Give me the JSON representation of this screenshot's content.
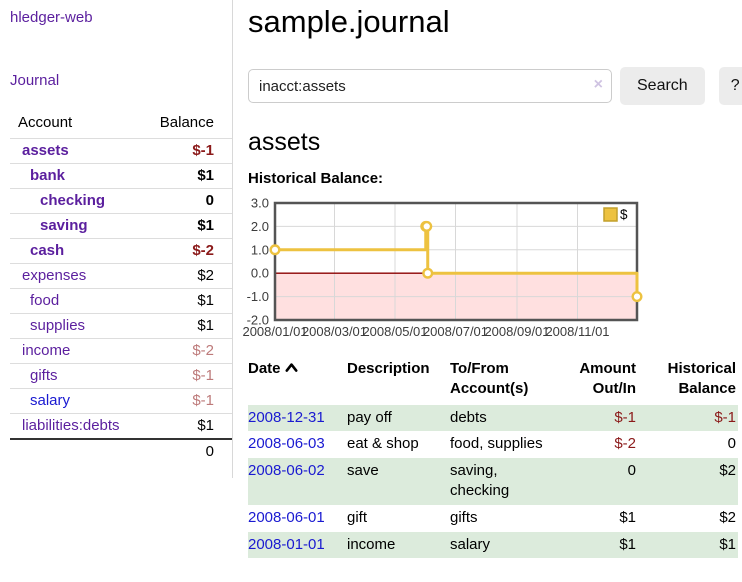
{
  "brand": "hledger-web",
  "nav": {
    "journal": "Journal"
  },
  "sidebar": {
    "headers": {
      "account": "Account",
      "balance": "Balance"
    },
    "rows": [
      {
        "label": "assets",
        "depth": 0,
        "bold": true,
        "label_color": "purple",
        "balance": "$-1",
        "balance_color": "neg"
      },
      {
        "label": "bank",
        "depth": 1,
        "bold": true,
        "label_color": "purple",
        "balance": "$1",
        "balance_color": "black"
      },
      {
        "label": "checking",
        "depth": 2,
        "bold": true,
        "label_color": "purple",
        "balance": "0",
        "balance_color": "black"
      },
      {
        "label": "saving",
        "depth": 2,
        "bold": true,
        "label_color": "purple",
        "balance": "$1",
        "balance_color": "black"
      },
      {
        "label": "cash",
        "depth": 1,
        "bold": true,
        "label_color": "purple",
        "balance": "$-2",
        "balance_color": "neg"
      },
      {
        "label": "expenses",
        "depth": 0,
        "bold": false,
        "label_color": "purple",
        "balance": "$2",
        "balance_color": "black"
      },
      {
        "label": "food",
        "depth": 1,
        "bold": false,
        "label_color": "purple",
        "balance": "$1",
        "balance_color": "black"
      },
      {
        "label": "supplies",
        "depth": 1,
        "bold": false,
        "label_color": "purple",
        "balance": "$1",
        "balance_color": "black"
      },
      {
        "label": "income",
        "depth": 0,
        "bold": false,
        "label_color": "purple",
        "balance": "$-2",
        "balance_color": "rose"
      },
      {
        "label": "gifts",
        "depth": 1,
        "bold": false,
        "label_color": "purple",
        "balance": "$-1",
        "balance_color": "rose"
      },
      {
        "label": "salary",
        "depth": 1,
        "bold": false,
        "label_color": "blue",
        "balance": "$-1",
        "balance_color": "rose"
      },
      {
        "label": "liabilities:debts",
        "depth": 0,
        "bold": false,
        "label_color": "purple",
        "balance": "$1",
        "balance_color": "black"
      }
    ],
    "total": "0"
  },
  "main": {
    "title": "sample.journal",
    "search": {
      "value": "inacct:assets",
      "clear_icon": "×",
      "search_button": "Search",
      "help_button": "?"
    },
    "account_heading": "assets",
    "chart_title": "Historical Balance:"
  },
  "chart_data": {
    "type": "line",
    "step": true,
    "title": "Historical Balance",
    "legend": "$",
    "legend_position": "top-right",
    "series": [
      {
        "name": "$",
        "color": "#EDC240",
        "points": [
          [
            "2008-01-01",
            1
          ],
          [
            "2008-06-01",
            2
          ],
          [
            "2008-06-02",
            2
          ],
          [
            "2008-06-03",
            0
          ],
          [
            "2008-12-31",
            -1
          ]
        ]
      }
    ],
    "x_range": [
      "2008-01-01",
      "2008-12-31"
    ],
    "x_ticks": [
      {
        "date": "2008-01-01",
        "label": "2008/01/01"
      },
      {
        "date": "2008-03-01",
        "label": "2008/03/01"
      },
      {
        "date": "2008-05-01",
        "label": "2008/05/01"
      },
      {
        "date": "2008-07-01",
        "label": "2008/07/01"
      },
      {
        "date": "2008-09-01",
        "label": "2008/09/01"
      },
      {
        "date": "2008-11-01",
        "label": "2008/11/01"
      }
    ],
    "y_ticks": [
      3.0,
      2.0,
      1.0,
      0.0,
      -1.0,
      -2.0
    ],
    "ylim": [
      -2,
      3
    ],
    "grid": true,
    "zero_line_color": "#8b0000",
    "negative_region_fill": "rgba(255,0,0,0.12)",
    "marker": "open-circle",
    "border_color": "#545454",
    "grid_color": "#d8d8d8"
  },
  "register": {
    "headers": {
      "date": "Date",
      "description": "Description",
      "accounts": "To/From Account(s)",
      "amount": "Amount Out/In",
      "balance": "Historical Balance"
    },
    "sort_icon": "chevron-up",
    "rows": [
      {
        "date": "2008-12-31",
        "description": "pay off",
        "accounts": "debts",
        "amount": "$-1",
        "amount_neg": true,
        "balance": "$-1",
        "balance_neg": true
      },
      {
        "date": "2008-06-03",
        "description": "eat & shop",
        "accounts": "food, supplies",
        "amount": "$-2",
        "amount_neg": true,
        "balance": "0",
        "balance_neg": false
      },
      {
        "date": "2008-06-02",
        "description": "save",
        "accounts": "saving, checking",
        "amount": "0",
        "amount_neg": false,
        "balance": "$2",
        "balance_neg": false
      },
      {
        "date": "2008-06-01",
        "description": "gift",
        "accounts": "gifts",
        "amount": "$1",
        "amount_neg": false,
        "balance": "$2",
        "balance_neg": false
      },
      {
        "date": "2008-01-01",
        "description": "income",
        "accounts": "salary",
        "amount": "$1",
        "amount_neg": false,
        "balance": "$1",
        "balance_neg": false
      }
    ]
  },
  "colors": {
    "link_purple": "#5b1f9e",
    "link_blue": "#1a1ad1",
    "negative_red": "#8b1a1a",
    "negative_rose": "#bd7a7a",
    "row_stripe_green": "#dcebdc",
    "chart_gold": "#EDC240"
  }
}
